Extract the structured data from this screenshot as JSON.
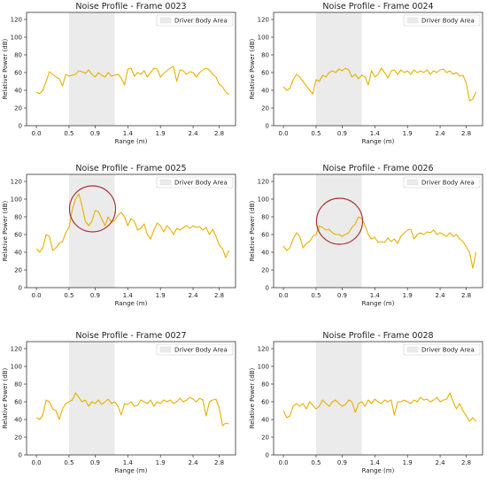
{
  "colors": {
    "line": "#e6b000",
    "span": "#ebebeb",
    "circle": "#a83232",
    "axis": "#333333"
  },
  "chart_data": [
    {
      "type": "line",
      "title": "Noise Profile - Frame 0023",
      "xlabel": "Range (m)",
      "ylabel": "Relative Power (dB)",
      "xlim": [
        -0.15,
        3.05
      ],
      "ylim": [
        0,
        128
      ],
      "xticks": [
        "0.0",
        "0.5",
        "0.9",
        "1.4",
        "1.9",
        "2.4",
        "2.8"
      ],
      "yticks": [
        "0",
        "20",
        "40",
        "60",
        "80",
        "100",
        "120"
      ],
      "legend": {
        "label": "Driver Body Area",
        "placement": "top-right"
      },
      "span": [
        0.5,
        1.2
      ],
      "series": [
        {
          "x": [
            0.0,
            0.05,
            0.1,
            0.15,
            0.2,
            0.25,
            0.3,
            0.35,
            0.4,
            0.45,
            0.5,
            0.55,
            0.6,
            0.65,
            0.7,
            0.75,
            0.8,
            0.85,
            0.9,
            0.95,
            1.0,
            1.05,
            1.1,
            1.15,
            1.2,
            1.25,
            1.3,
            1.35,
            1.4,
            1.45,
            1.5,
            1.55,
            1.6,
            1.65,
            1.7,
            1.75,
            1.8,
            1.85,
            1.9,
            1.95,
            2.0,
            2.05,
            2.1,
            2.15,
            2.2,
            2.25,
            2.3,
            2.35,
            2.4,
            2.45,
            2.5,
            2.55,
            2.6,
            2.65,
            2.7,
            2.75,
            2.8,
            2.85,
            2.9,
            2.95
          ],
          "y": [
            38,
            36,
            40,
            50,
            61,
            58,
            55,
            53,
            45,
            58,
            56,
            57,
            58,
            62,
            61,
            59,
            63,
            58,
            55,
            60,
            57,
            55,
            60,
            56,
            57,
            58,
            54,
            46,
            64,
            65,
            56,
            60,
            58,
            62,
            55,
            60,
            65,
            64,
            55,
            59,
            62,
            65,
            67,
            50,
            63,
            62,
            58,
            61,
            60,
            55,
            60,
            63,
            65,
            63,
            58,
            55,
            47,
            44,
            38,
            35
          ]
        }
      ],
      "circle": null
    },
    {
      "type": "line",
      "title": "Noise Profile - Frame 0024",
      "xlabel": "Range (m)",
      "ylabel": "Relative Power (dB)",
      "xlim": [
        -0.15,
        3.05
      ],
      "ylim": [
        0,
        128
      ],
      "xticks": [
        "0.0",
        "0.5",
        "0.9",
        "1.4",
        "1.9",
        "2.4",
        "2.8"
      ],
      "yticks": [
        "0",
        "20",
        "40",
        "60",
        "80",
        "100",
        "120"
      ],
      "legend": {
        "label": "Driver Body Area",
        "placement": "top-right"
      },
      "span": [
        0.5,
        1.2
      ],
      "series": [
        {
          "x": [
            0.0,
            0.05,
            0.1,
            0.15,
            0.2,
            0.25,
            0.3,
            0.35,
            0.4,
            0.45,
            0.5,
            0.55,
            0.6,
            0.65,
            0.7,
            0.75,
            0.8,
            0.85,
            0.9,
            0.95,
            1.0,
            1.05,
            1.1,
            1.15,
            1.2,
            1.25,
            1.3,
            1.35,
            1.4,
            1.45,
            1.5,
            1.55,
            1.6,
            1.65,
            1.7,
            1.75,
            1.8,
            1.85,
            1.9,
            1.95,
            2.0,
            2.05,
            2.1,
            2.15,
            2.2,
            2.25,
            2.3,
            2.35,
            2.4,
            2.45,
            2.5,
            2.55,
            2.6,
            2.65,
            2.7,
            2.75,
            2.8,
            2.85,
            2.9,
            2.95
          ],
          "y": [
            44,
            40,
            42,
            52,
            58,
            55,
            50,
            45,
            40,
            36,
            52,
            50,
            57,
            55,
            60,
            62,
            60,
            64,
            62,
            65,
            63,
            55,
            58,
            53,
            57,
            55,
            46,
            62,
            55,
            58,
            65,
            60,
            54,
            62,
            63,
            58,
            63,
            60,
            62,
            58,
            63,
            60,
            62,
            60,
            63,
            58,
            62,
            60,
            63,
            64,
            60,
            62,
            58,
            60,
            56,
            57,
            48,
            28,
            30,
            38
          ]
        }
      ],
      "circle": null
    },
    {
      "type": "line",
      "title": "Noise Profile - Frame 0025",
      "xlabel": "Range (m)",
      "ylabel": "Relative Power (dB)",
      "xlim": [
        -0.15,
        3.05
      ],
      "ylim": [
        0,
        128
      ],
      "xticks": [
        "0.0",
        "0.5",
        "0.9",
        "1.4",
        "1.9",
        "2.4",
        "2.8"
      ],
      "yticks": [
        "0",
        "20",
        "40",
        "60",
        "80",
        "100",
        "120"
      ],
      "legend": {
        "label": "Driver Body Area",
        "placement": "top-right"
      },
      "span": [
        0.5,
        1.2
      ],
      "series": [
        {
          "x": [
            0.0,
            0.05,
            0.1,
            0.15,
            0.2,
            0.25,
            0.3,
            0.35,
            0.4,
            0.45,
            0.5,
            0.55,
            0.6,
            0.65,
            0.7,
            0.75,
            0.8,
            0.85,
            0.9,
            0.95,
            1.0,
            1.05,
            1.1,
            1.15,
            1.2,
            1.25,
            1.3,
            1.35,
            1.4,
            1.45,
            1.5,
            1.55,
            1.6,
            1.65,
            1.7,
            1.75,
            1.8,
            1.85,
            1.9,
            1.95,
            2.0,
            2.05,
            2.1,
            2.15,
            2.2,
            2.25,
            2.3,
            2.35,
            2.4,
            2.45,
            2.5,
            2.55,
            2.6,
            2.65,
            2.7,
            2.75,
            2.8,
            2.85,
            2.9,
            2.95
          ],
          "y": [
            44,
            40,
            45,
            60,
            58,
            42,
            45,
            50,
            52,
            62,
            68,
            88,
            100,
            106,
            92,
            75,
            70,
            75,
            87,
            86,
            78,
            70,
            80,
            74,
            76,
            82,
            85,
            80,
            70,
            78,
            75,
            65,
            67,
            72,
            60,
            55,
            65,
            73,
            70,
            63,
            70,
            66,
            60,
            67,
            65,
            68,
            70,
            67,
            70,
            68,
            69,
            65,
            68,
            60,
            66,
            58,
            48,
            44,
            34,
            42
          ]
        }
      ],
      "circle": {
        "x": 0.86,
        "y": 89
      }
    },
    {
      "type": "line",
      "title": "Noise Profile - Frame 0026",
      "xlabel": "Range (m)",
      "ylabel": "Relative Power (dB)",
      "xlim": [
        -0.15,
        3.05
      ],
      "ylim": [
        0,
        128
      ],
      "xticks": [
        "0.0",
        "0.5",
        "0.9",
        "1.4",
        "1.9",
        "2.4",
        "2.8"
      ],
      "yticks": [
        "0",
        "20",
        "40",
        "60",
        "80",
        "100",
        "120"
      ],
      "legend": {
        "label": "Driver Body Area",
        "placement": "top-right"
      },
      "span": [
        0.5,
        1.2
      ],
      "series": [
        {
          "x": [
            0.0,
            0.05,
            0.1,
            0.15,
            0.2,
            0.25,
            0.3,
            0.35,
            0.4,
            0.45,
            0.5,
            0.55,
            0.6,
            0.65,
            0.7,
            0.75,
            0.8,
            0.85,
            0.9,
            0.95,
            1.0,
            1.05,
            1.1,
            1.15,
            1.2,
            1.25,
            1.3,
            1.35,
            1.4,
            1.45,
            1.5,
            1.55,
            1.6,
            1.65,
            1.7,
            1.75,
            1.8,
            1.85,
            1.9,
            1.95,
            2.0,
            2.05,
            2.1,
            2.15,
            2.2,
            2.25,
            2.3,
            2.35,
            2.4,
            2.45,
            2.5,
            2.55,
            2.6,
            2.65,
            2.7,
            2.75,
            2.8,
            2.85,
            2.9,
            2.95
          ],
          "y": [
            47,
            42,
            45,
            55,
            62,
            58,
            45,
            50,
            52,
            58,
            60,
            70,
            68,
            65,
            66,
            62,
            60,
            60,
            58,
            60,
            62,
            68,
            72,
            80,
            78,
            70,
            60,
            55,
            57,
            51,
            52,
            51,
            56,
            52,
            55,
            50,
            58,
            62,
            65,
            66,
            55,
            60,
            62,
            60,
            63,
            62,
            65,
            60,
            62,
            60,
            58,
            62,
            58,
            60,
            55,
            52,
            46,
            40,
            22,
            40
          ]
        }
      ],
      "circle": {
        "x": 0.86,
        "y": 75
      }
    },
    {
      "type": "line",
      "title": "Noise Profile - Frame 0027",
      "xlabel": "Range (m)",
      "ylabel": "Relative Power (dB)",
      "xlim": [
        -0.15,
        3.05
      ],
      "ylim": [
        0,
        128
      ],
      "xticks": [
        "0.0",
        "0.5",
        "0.9",
        "1.4",
        "1.9",
        "2.4",
        "2.8"
      ],
      "yticks": [
        "0",
        "20",
        "40",
        "60",
        "80",
        "100",
        "120"
      ],
      "legend": {
        "label": "Driver Body Area",
        "placement": "top-right"
      },
      "span": [
        0.5,
        1.2
      ],
      "series": [
        {
          "x": [
            0.0,
            0.05,
            0.1,
            0.15,
            0.2,
            0.25,
            0.3,
            0.35,
            0.4,
            0.45,
            0.5,
            0.55,
            0.6,
            0.65,
            0.7,
            0.75,
            0.8,
            0.85,
            0.9,
            0.95,
            1.0,
            1.05,
            1.1,
            1.15,
            1.2,
            1.25,
            1.3,
            1.35,
            1.4,
            1.45,
            1.5,
            1.55,
            1.6,
            1.65,
            1.7,
            1.75,
            1.8,
            1.85,
            1.9,
            1.95,
            2.0,
            2.05,
            2.1,
            2.15,
            2.2,
            2.25,
            2.3,
            2.35,
            2.4,
            2.45,
            2.5,
            2.55,
            2.6,
            2.65,
            2.7,
            2.75,
            2.8,
            2.85,
            2.9,
            2.95
          ],
          "y": [
            42,
            40,
            45,
            62,
            60,
            52,
            50,
            40,
            52,
            58,
            60,
            62,
            70,
            65,
            60,
            62,
            55,
            60,
            58,
            62,
            57,
            60,
            63,
            58,
            60,
            55,
            45,
            58,
            57,
            60,
            55,
            56,
            62,
            60,
            58,
            62,
            55,
            60,
            58,
            62,
            60,
            62,
            58,
            60,
            64,
            60,
            62,
            65,
            63,
            60,
            64,
            62,
            44,
            60,
            62,
            63,
            53,
            33,
            36,
            35
          ]
        }
      ],
      "circle": null
    },
    {
      "type": "line",
      "title": "Noise Profile - Frame 0028",
      "xlabel": "Range (m)",
      "ylabel": "Relative Power (dB)",
      "xlim": [
        -0.15,
        3.05
      ],
      "ylim": [
        0,
        128
      ],
      "xticks": [
        "0.0",
        "0.5",
        "0.9",
        "1.4",
        "1.9",
        "2.4",
        "2.8"
      ],
      "yticks": [
        "0",
        "20",
        "40",
        "60",
        "80",
        "100",
        "120"
      ],
      "legend": {
        "label": "Driver Body Area",
        "placement": "top-right"
      },
      "span": [
        0.5,
        1.2
      ],
      "series": [
        {
          "x": [
            0.0,
            0.05,
            0.1,
            0.15,
            0.2,
            0.25,
            0.3,
            0.35,
            0.4,
            0.45,
            0.5,
            0.55,
            0.6,
            0.65,
            0.7,
            0.75,
            0.8,
            0.85,
            0.9,
            0.95,
            1.0,
            1.05,
            1.1,
            1.15,
            1.2,
            1.25,
            1.3,
            1.35,
            1.4,
            1.45,
            1.5,
            1.55,
            1.6,
            1.65,
            1.7,
            1.75,
            1.8,
            1.85,
            1.9,
            1.95,
            2.0,
            2.05,
            2.1,
            2.15,
            2.2,
            2.25,
            2.3,
            2.35,
            2.4,
            2.45,
            2.5,
            2.55,
            2.6,
            2.65,
            2.7,
            2.75,
            2.8,
            2.85,
            2.9,
            2.95
          ],
          "y": [
            50,
            42,
            44,
            55,
            58,
            55,
            58,
            52,
            60,
            56,
            52,
            55,
            62,
            58,
            55,
            60,
            62,
            58,
            55,
            57,
            62,
            60,
            48,
            58,
            60,
            55,
            62,
            58,
            63,
            60,
            58,
            62,
            60,
            62,
            45,
            60,
            60,
            62,
            60,
            58,
            62,
            60,
            65,
            62,
            63,
            60,
            62,
            65,
            60,
            62,
            63,
            70,
            60,
            52,
            58,
            50,
            44,
            38,
            42,
            38
          ]
        }
      ],
      "circle": null
    }
  ]
}
